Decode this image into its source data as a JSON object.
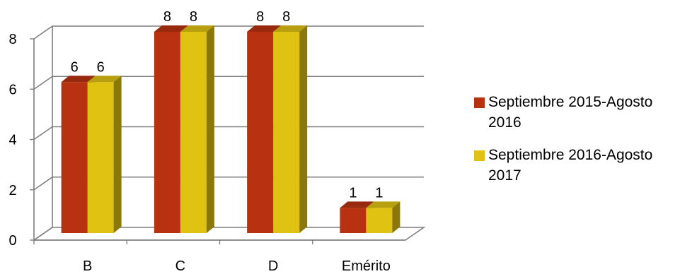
{
  "chart_data": {
    "type": "bar",
    "categories": [
      "B",
      "C",
      "D",
      "Emérito"
    ],
    "series": [
      {
        "name": "Septiembre 2015-Agosto 2016",
        "values": [
          6,
          8,
          8,
          1
        ],
        "color": "#b83212"
      },
      {
        "name": "Septiembre 2016-Agosto 2017",
        "values": [
          6,
          8,
          8,
          1
        ],
        "color": "#dfc212"
      }
    ],
    "ylim": [
      0,
      8
    ],
    "yticks": [
      "0",
      "2",
      "4",
      "6",
      "8"
    ],
    "grid": true,
    "legend_position": "right",
    "style": "3d-clustered-columns"
  }
}
